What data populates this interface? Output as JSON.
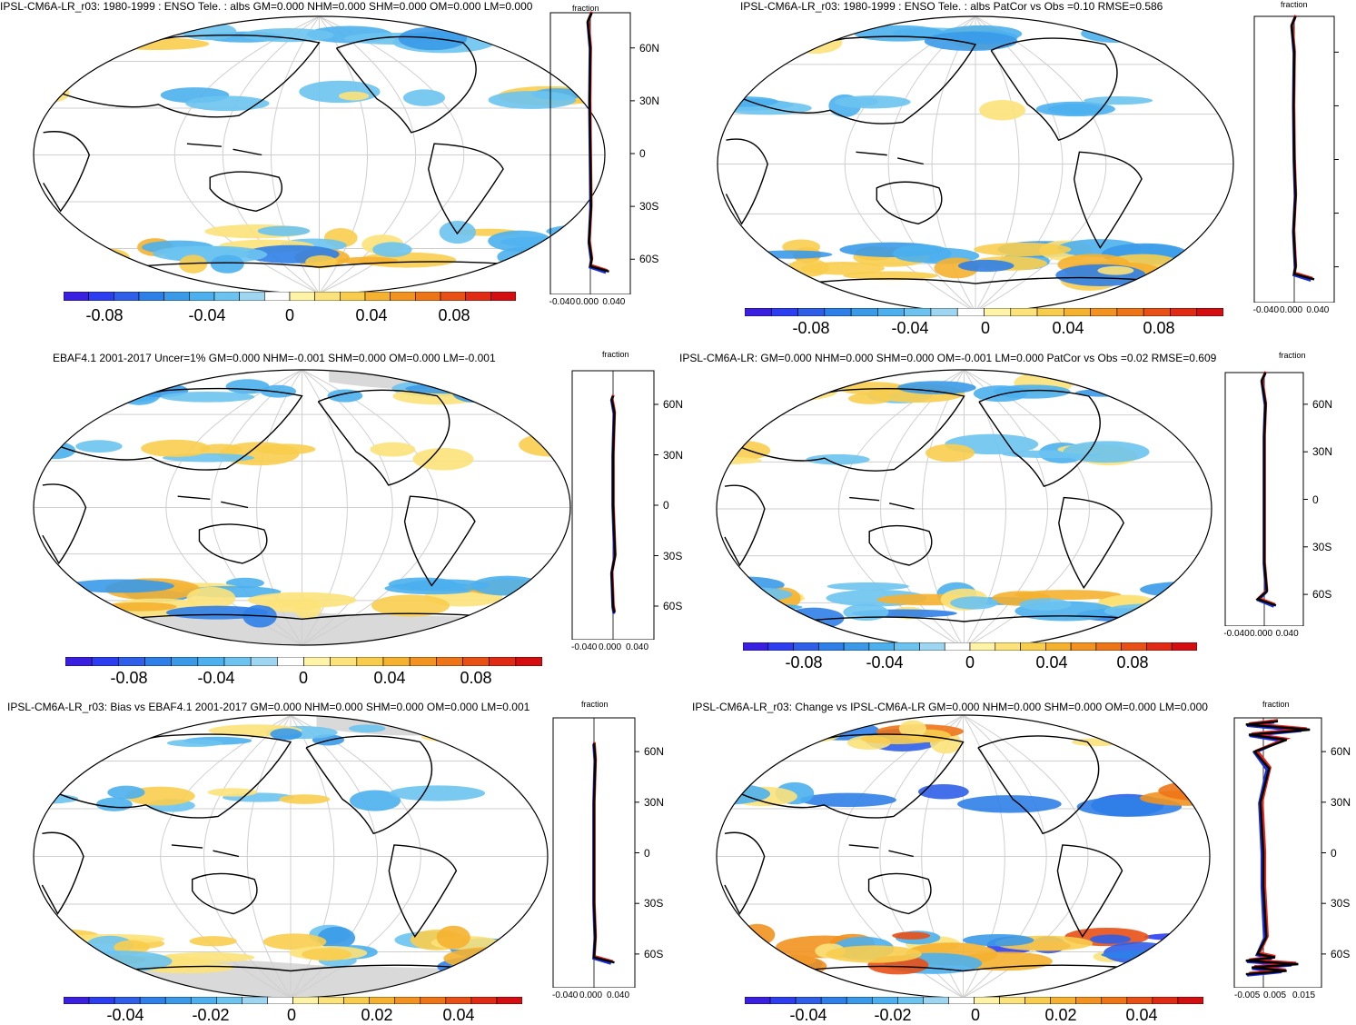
{
  "colors": {
    "scale": [
      "#3b1fe0",
      "#2d3ef0",
      "#2f5fe8",
      "#2f7fe8",
      "#3a9ae8",
      "#4db0ee",
      "#6cc3f0",
      "#9ed6f2",
      "#ffffff",
      "#fff3a8",
      "#fce27a",
      "#f8cd4e",
      "#f5b130",
      "#f29220",
      "#ee7418",
      "#e85016",
      "#e02a14",
      "#d40d10"
    ],
    "land_mask": "#d9d9d9",
    "grid": "#cfcfcf",
    "model_line": "#000000",
    "pos_line": "#e8221c",
    "neg_line": "#1a2ee0"
  },
  "chart_data": [
    {
      "type": "heatmap",
      "title": "IPSL-CM6A-LR_r03: 1980-1999 : ENSO Tele. : albs GM=0.000 NHM=0.000 SHM=0.000 OM=0.000 LM=0.000",
      "colorbar_labels": [
        "-0.08",
        "-0.04",
        "0",
        "0.04",
        "0.08"
      ],
      "zonal": {
        "xlabel": "fraction",
        "xticks": [
          "-0.040",
          "0.000",
          "0.040"
        ],
        "xlim": [
          -0.06,
          0.06
        ],
        "lat_labels": [
          "60N",
          "30N",
          "0",
          "30S",
          "60S"
        ],
        "profile": [
          [
            -67,
            0.028
          ],
          [
            -64,
            0.0
          ],
          [
            -60,
            0.002
          ],
          [
            -50,
            -0.002
          ],
          [
            -30,
            0.001
          ],
          [
            0,
            0.0
          ],
          [
            30,
            -0.001
          ],
          [
            60,
            0.0
          ],
          [
            75,
            -0.004
          ],
          [
            80,
            0.002
          ]
        ]
      }
    },
    {
      "type": "heatmap",
      "title": "IPSL-CM6A-LR_r03: 1980-1999 : ENSO Tele. : albs PatCor vs Obs =0.10 RMSE=0.586",
      "colorbar_labels": [
        "-0.08",
        "-0.04",
        "0",
        "0.04",
        "0.08"
      ],
      "zonal": {
        "xlabel": "fraction",
        "xticks": [
          "-0.040",
          "0.000",
          "0.040"
        ],
        "xlim": [
          -0.06,
          0.06
        ],
        "lat_labels": [],
        "profile": [
          [
            -67,
            0.03
          ],
          [
            -64,
            0.0
          ],
          [
            -60,
            0.002
          ],
          [
            -40,
            -0.001
          ],
          [
            -20,
            0.002
          ],
          [
            0,
            0.0
          ],
          [
            30,
            -0.001
          ],
          [
            60,
            0.0
          ],
          [
            75,
            -0.004
          ],
          [
            80,
            0.002
          ]
        ]
      }
    },
    {
      "type": "heatmap",
      "title": "EBAF4.1 2001-2017 Uncer=1% GM=0.000 NHM=-0.001 SHM=0.000 OM=0.000 LM=-0.001",
      "colorbar_labels": [
        "-0.08",
        "-0.04",
        "0",
        "0.04",
        "0.08"
      ],
      "zonal": {
        "xlabel": "fraction",
        "xticks": [
          "-0.040",
          "0.000",
          "0.040"
        ],
        "xlim": [
          -0.06,
          0.06
        ],
        "lat_labels": [
          "60N",
          "30N",
          "0",
          "30S",
          "60S"
        ],
        "profile": [
          [
            -64,
            0.002
          ],
          [
            -60,
            0.0
          ],
          [
            -40,
            -0.002
          ],
          [
            -30,
            0.003
          ],
          [
            0,
            0.0
          ],
          [
            30,
            0.0
          ],
          [
            55,
            0.002
          ],
          [
            63,
            -0.002
          ],
          [
            65,
            0.0
          ]
        ]
      }
    },
    {
      "type": "heatmap",
      "title": "IPSL-CM6A-LR: GM=0.000 NHM=0.000 SHM=0.000 OM=-0.001 LM=0.000 PatCor vs Obs =0.02 RMSE=0.609",
      "colorbar_labels": [
        "-0.08",
        "-0.04",
        "0",
        "0.04",
        "0.08"
      ],
      "zonal": {
        "xlabel": "fraction",
        "xticks": [
          "-0.040",
          "0.000",
          "0.040"
        ],
        "xlim": [
          -0.06,
          0.06
        ],
        "lat_labels": [
          "60N",
          "30N",
          "0",
          "30S",
          "60S"
        ],
        "profile": [
          [
            -67,
            0.018
          ],
          [
            -63,
            -0.01
          ],
          [
            -58,
            0.004
          ],
          [
            -40,
            0.0
          ],
          [
            0,
            0.0
          ],
          [
            40,
            0.0
          ],
          [
            60,
            0.002
          ],
          [
            75,
            -0.004
          ],
          [
            80,
            0.002
          ]
        ]
      }
    },
    {
      "type": "heatmap",
      "title": "IPSL-CM6A-LR_r03: Bias vs EBAF4.1 2001-2017 GM=0.000 NHM=0.000 SHM=0.000 OM=0.000 LM=0.001",
      "colorbar_labels": [
        "-0.04",
        "-0.02",
        "0",
        "0.02",
        "0.04"
      ],
      "zonal": {
        "xlabel": "fraction",
        "xticks": [
          "-0.040",
          "0.000",
          "0.040"
        ],
        "xlim": [
          -0.06,
          0.06
        ],
        "lat_labels": [
          "60N",
          "30N",
          "0",
          "30S",
          "60S"
        ],
        "profile": [
          [
            -65,
            0.03
          ],
          [
            -62,
            0.0
          ],
          [
            -50,
            0.002
          ],
          [
            -30,
            0.0
          ],
          [
            0,
            0.0
          ],
          [
            30,
            0.0
          ],
          [
            55,
            0.002
          ],
          [
            65,
            0.0
          ]
        ]
      }
    },
    {
      "type": "heatmap",
      "title": "IPSL-CM6A-LR_r03: Change vs IPSL-CM6A-LR GM=0.000 NHM=0.000 SHM=0.000 OM=0.000 LM=0.000",
      "colorbar_labels": [
        "-0.04",
        "-0.02",
        "0",
        "0.02",
        "0.04"
      ],
      "zonal": {
        "xlabel": "fraction",
        "xticks": [
          "-0.005",
          "0.005",
          "0.015"
        ],
        "xlim": [
          -0.01,
          0.02
        ],
        "lat_labels": [
          "60N",
          "30N",
          "0",
          "30S",
          "60S"
        ],
        "profile": [
          [
            -72,
            -0.006
          ],
          [
            -70,
            0.008
          ],
          [
            -68,
            -0.004
          ],
          [
            -66,
            0.012
          ],
          [
            -64,
            -0.006
          ],
          [
            -62,
            0.004
          ],
          [
            -60,
            -0.002
          ],
          [
            -50,
            0.001
          ],
          [
            -20,
            0.0
          ],
          [
            0,
            0.0
          ],
          [
            30,
            -0.001
          ],
          [
            50,
            0.002
          ],
          [
            60,
            -0.003
          ],
          [
            67,
            0.008
          ],
          [
            70,
            -0.005
          ],
          [
            73,
            0.016
          ],
          [
            76,
            -0.006
          ],
          [
            78,
            0.005
          ]
        ]
      }
    }
  ]
}
